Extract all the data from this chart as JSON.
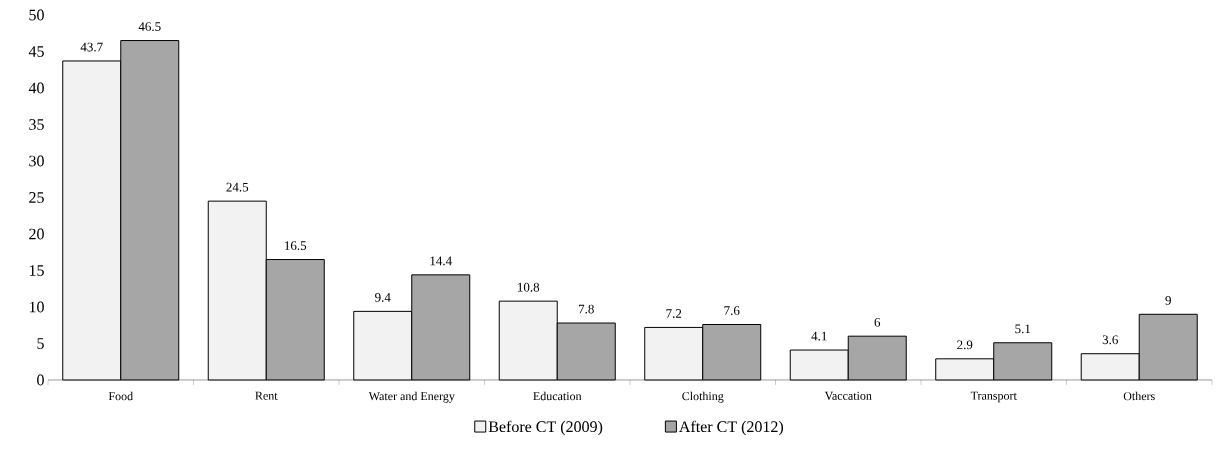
{
  "chart_data": {
    "type": "bar",
    "categories": [
      "Food",
      "Rent",
      "Water and Energy",
      "Education",
      "Clothing",
      "Vaccation",
      "Transport",
      "Others"
    ],
    "series": [
      {
        "name": "Before CT (2009)",
        "color": "#f2f2f2",
        "values": [
          43.7,
          24.5,
          9.4,
          10.8,
          7.2,
          4.1,
          2.9,
          3.6
        ]
      },
      {
        "name": "After CT (2012)",
        "color": "#a6a6a6",
        "values": [
          46.5,
          16.5,
          14.4,
          7.8,
          7.6,
          6,
          5.1,
          9
        ]
      }
    ],
    "ylim": [
      0,
      50
    ],
    "yticks": [
      0,
      5,
      10,
      15,
      20,
      25,
      30,
      35,
      40,
      45,
      50
    ],
    "data_labels": true,
    "grid": false,
    "legend": "bottom"
  }
}
